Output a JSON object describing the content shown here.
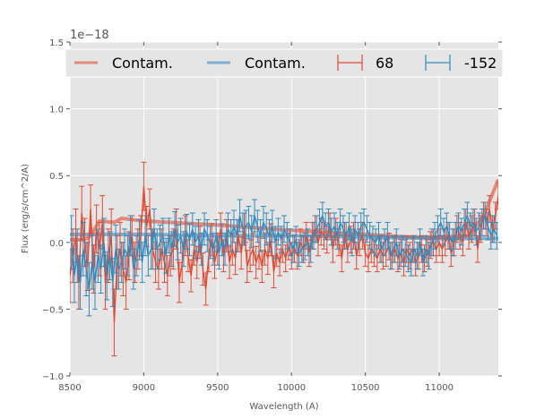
{
  "chart_data": {
    "type": "line",
    "title": "",
    "xlabel": "Wavelength (A)",
    "ylabel": "Flux (erg/s/cm^2/A)",
    "y_offset_label": "1e−18",
    "xlim": [
      8500,
      11400
    ],
    "ylim": [
      -1.0,
      1.5
    ],
    "x_ticks": [
      8500,
      9000,
      9500,
      10000,
      10500,
      11000
    ],
    "x_tick_labels": [
      "8500",
      "9000",
      "9500",
      "10000",
      "10500",
      "11000"
    ],
    "y_ticks": [
      -1.0,
      -0.5,
      0.0,
      0.5,
      1.0,
      1.5
    ],
    "y_tick_labels": [
      "−1.0",
      "−0.5",
      "0.0",
      "0.5",
      "1.0",
      "1.5"
    ],
    "grid": true,
    "legend_position": "top",
    "colors": {
      "red": "#e24a33",
      "blue": "#348abd",
      "background": "#e5e5e5",
      "grid": "#ffffff"
    },
    "legend": [
      {
        "label": "Contam.",
        "kind": "line",
        "color": "#e8887a"
      },
      {
        "label": "Contam.",
        "kind": "line",
        "color": "#7fb0d3"
      },
      {
        "label": "68",
        "kind": "errorbar",
        "color": "#e24a33"
      },
      {
        "label": "-152",
        "kind": "errorbar",
        "color": "#348abd"
      }
    ],
    "series": [
      {
        "name": "Contam. (68)",
        "kind": "contam",
        "color": "#e24a33",
        "x": [
          8500,
          8600,
          8640,
          8700,
          8800,
          8850,
          9000,
          9500,
          10000,
          10500,
          10800,
          11000,
          11200,
          11300,
          11400
        ],
        "y": [
          0.02,
          0.02,
          0.05,
          0.16,
          0.15,
          0.18,
          0.16,
          0.13,
          0.09,
          0.06,
          0.04,
          0.04,
          0.05,
          0.2,
          0.47
        ]
      },
      {
        "name": "Contam. (-152)",
        "kind": "contam",
        "color": "#348abd",
        "x": [
          8500,
          9000,
          9500,
          10000,
          10500,
          11000,
          11400
        ],
        "y": [
          0.06,
          0.06,
          0.05,
          0.05,
          0.04,
          0.03,
          0.03
        ]
      },
      {
        "name": "68",
        "kind": "errorbar",
        "color": "#e24a33",
        "x": [
          8500,
          8520,
          8540,
          8560,
          8580,
          8600,
          8620,
          8640,
          8660,
          8680,
          8700,
          8720,
          8740,
          8760,
          8780,
          8800,
          8820,
          8840,
          8860,
          8880,
          8900,
          8920,
          8940,
          8960,
          8980,
          9000,
          9020,
          9040,
          9060,
          9080,
          9100,
          9120,
          9140,
          9160,
          9180,
          9200,
          9220,
          9240,
          9260,
          9280,
          9300,
          9320,
          9340,
          9360,
          9380,
          9400,
          9420,
          9440,
          9460,
          9480,
          9500,
          9520,
          9540,
          9560,
          9580,
          9600,
          9620,
          9640,
          9660,
          9680,
          9700,
          9720,
          9740,
          9760,
          9780,
          9800,
          9820,
          9840,
          9860,
          9880,
          9900,
          9920,
          9940,
          9960,
          9980,
          10000,
          10020,
          10040,
          10060,
          10080,
          10100,
          10120,
          10140,
          10160,
          10180,
          10200,
          10220,
          10240,
          10260,
          10280,
          10300,
          10320,
          10340,
          10360,
          10380,
          10400,
          10420,
          10440,
          10460,
          10480,
          10500,
          10520,
          10540,
          10560,
          10580,
          10600,
          10620,
          10640,
          10660,
          10680,
          10700,
          10720,
          10740,
          10760,
          10780,
          10800,
          10820,
          10840,
          10860,
          10880,
          10900,
          10920,
          10940,
          10960,
          10980,
          11000,
          11020,
          11040,
          11060,
          11080,
          11100,
          11120,
          11140,
          11160,
          11180,
          11200,
          11220,
          11240,
          11260,
          11280,
          11300,
          11320,
          11340,
          11360,
          11380,
          11400
        ],
        "y": [
          -0.25,
          -0.1,
          0.05,
          -0.3,
          0.22,
          0.0,
          -0.18,
          0.25,
          -0.2,
          0.1,
          -0.05,
          0.15,
          -0.3,
          -0.1,
          0.05,
          -0.6,
          -0.15,
          -0.05,
          -0.2,
          -0.3,
          -0.1,
          0.05,
          -0.15,
          -0.05,
          0.05,
          0.42,
          0.12,
          0.25,
          -0.05,
          -0.15,
          -0.2,
          -0.05,
          -0.15,
          -0.25,
          -0.1,
          -0.05,
          0.1,
          -0.3,
          -0.15,
          0.05,
          -0.1,
          -0.25,
          -0.05,
          -0.15,
          0.0,
          -0.2,
          -0.35,
          -0.1,
          0.02,
          -0.15,
          -0.05,
          0.1,
          -0.1,
          0.05,
          -0.15,
          -0.05,
          -0.12,
          0.05,
          -0.08,
          0.1,
          -0.18,
          -0.1,
          -0.05,
          -0.15,
          -0.08,
          -0.18,
          -0.05,
          -0.12,
          0.02,
          -0.22,
          -0.08,
          -0.15,
          -0.05,
          -0.12,
          -0.03,
          -0.1,
          -0.05,
          -0.1,
          0.0,
          -0.05,
          0.05,
          -0.08,
          0.05,
          0.1,
          0.0,
          0.08,
          0.05,
          0.02,
          0.12,
          -0.05,
          0.08,
          0.0,
          -0.12,
          0.05,
          -0.05,
          0.02,
          0.05,
          -0.1,
          0.0,
          0.05,
          -0.08,
          -0.12,
          -0.05,
          -0.08,
          -0.12,
          -0.05,
          -0.1,
          -0.08,
          -0.03,
          -0.1,
          -0.05,
          -0.12,
          -0.08,
          -0.15,
          -0.05,
          -0.1,
          -0.05,
          -0.15,
          -0.1,
          -0.05,
          -0.12,
          -0.08,
          -0.02,
          0.0,
          -0.05,
          0.0,
          -0.05,
          0.0,
          0.05,
          -0.08,
          0.0,
          0.1,
          0.05,
          0.0,
          0.15,
          0.05,
          0.1,
          0.15,
          -0.05,
          0.1,
          0.2,
          0.15,
          0.25,
          0.1,
          0.2,
          0.35
        ],
        "yerr": [
          0.2,
          0.2,
          0.2,
          0.2,
          0.2,
          0.18,
          0.18,
          0.18,
          0.18,
          0.18,
          0.2,
          0.2,
          0.2,
          0.2,
          0.2,
          0.25,
          0.2,
          0.2,
          0.2,
          0.2,
          0.18,
          0.15,
          0.15,
          0.15,
          0.15,
          0.18,
          0.15,
          0.15,
          0.15,
          0.15,
          0.15,
          0.15,
          0.15,
          0.15,
          0.15,
          0.15,
          0.15,
          0.15,
          0.15,
          0.15,
          0.12,
          0.12,
          0.12,
          0.12,
          0.12,
          0.12,
          0.12,
          0.12,
          0.12,
          0.12,
          0.12,
          0.12,
          0.12,
          0.12,
          0.12,
          0.12,
          0.12,
          0.12,
          0.12,
          0.12,
          0.12,
          0.12,
          0.12,
          0.12,
          0.12,
          0.12,
          0.12,
          0.12,
          0.12,
          0.12,
          0.1,
          0.1,
          0.1,
          0.1,
          0.1,
          0.1,
          0.1,
          0.1,
          0.1,
          0.1,
          0.1,
          0.1,
          0.1,
          0.1,
          0.1,
          0.1,
          0.1,
          0.1,
          0.1,
          0.1,
          0.1,
          0.1,
          0.1,
          0.1,
          0.1,
          0.1,
          0.1,
          0.1,
          0.1,
          0.1,
          0.1,
          0.1,
          0.1,
          0.1,
          0.1,
          0.1,
          0.1,
          0.1,
          0.1,
          0.1,
          0.1,
          0.1,
          0.1,
          0.1,
          0.1,
          0.1,
          0.1,
          0.1,
          0.1,
          0.1,
          0.1,
          0.1,
          0.1,
          0.1,
          0.1,
          0.1,
          0.1,
          0.1,
          0.1,
          0.1,
          0.1,
          0.1,
          0.1,
          0.1,
          0.1,
          0.1,
          0.1,
          0.1,
          0.1,
          0.1,
          0.1,
          0.1,
          0.1,
          0.1,
          0.1,
          0.1
        ]
      },
      {
        "name": "-152",
        "kind": "errorbar",
        "color": "#348abd",
        "x": [
          8510,
          8530,
          8550,
          8570,
          8590,
          8610,
          8630,
          8650,
          8670,
          8690,
          8710,
          8730,
          8750,
          8770,
          8790,
          8810,
          8830,
          8850,
          8870,
          8890,
          8910,
          8930,
          8950,
          8970,
          8990,
          9010,
          9030,
          9050,
          9070,
          9090,
          9110,
          9130,
          9150,
          9170,
          9190,
          9210,
          9230,
          9250,
          9270,
          9290,
          9310,
          9330,
          9350,
          9370,
          9390,
          9410,
          9430,
          9450,
          9470,
          9490,
          9510,
          9530,
          9550,
          9570,
          9590,
          9610,
          9630,
          9650,
          9670,
          9690,
          9710,
          9730,
          9750,
          9770,
          9790,
          9810,
          9830,
          9850,
          9870,
          9890,
          9910,
          9930,
          9950,
          9970,
          9990,
          10010,
          10030,
          10050,
          10070,
          10090,
          10110,
          10130,
          10150,
          10170,
          10190,
          10210,
          10230,
          10250,
          10270,
          10290,
          10310,
          10330,
          10350,
          10370,
          10390,
          10410,
          10430,
          10450,
          10470,
          10490,
          10510,
          10530,
          10550,
          10570,
          10590,
          10610,
          10630,
          10650,
          10670,
          10690,
          10710,
          10730,
          10750,
          10770,
          10790,
          10810,
          10830,
          10850,
          10870,
          10890,
          10910,
          10930,
          10950,
          10970,
          10990,
          11010,
          11030,
          11050,
          11070,
          11090,
          11110,
          11130,
          11150,
          11170,
          11190,
          11210,
          11230,
          11250,
          11270,
          11290,
          11310,
          11330,
          11350,
          11370,
          11390
        ],
        "y": [
          0.0,
          -0.25,
          -0.1,
          -0.3,
          -0.05,
          -0.2,
          -0.35,
          -0.15,
          -0.3,
          -0.1,
          -0.2,
          0.0,
          -0.25,
          -0.1,
          -0.3,
          -0.05,
          -0.2,
          -0.15,
          -0.05,
          -0.1,
          0.05,
          -0.2,
          -0.1,
          0.02,
          -0.15,
          0.05,
          -0.1,
          -0.05,
          0.1,
          -0.05,
          0.0,
          0.05,
          -0.1,
          0.05,
          -0.05,
          0.1,
          0.0,
          0.05,
          -0.05,
          0.08,
          0.02,
          0.1,
          0.0,
          0.05,
          -0.05,
          0.1,
          0.05,
          0.0,
          -0.05,
          0.05,
          -0.08,
          0.02,
          -0.05,
          0.1,
          0.05,
          0.12,
          0.05,
          0.2,
          0.1,
          0.12,
          0.15,
          0.08,
          0.2,
          0.12,
          0.05,
          0.15,
          0.1,
          0.05,
          0.12,
          0.0,
          0.08,
          0.02,
          0.1,
          0.05,
          0.0,
          -0.05,
          0.02,
          -0.08,
          -0.05,
          -0.03,
          0.0,
          -0.05,
          0.05,
          0.1,
          0.15,
          0.2,
          0.12,
          0.15,
          0.08,
          0.12,
          0.05,
          0.15,
          0.1,
          0.05,
          0.12,
          0.0,
          0.1,
          0.05,
          0.12,
          0.15,
          0.1,
          0.05,
          0.02,
          0.0,
          0.05,
          -0.05,
          0.0,
          0.05,
          -0.1,
          -0.05,
          0.0,
          -0.1,
          -0.05,
          -0.08,
          -0.12,
          -0.15,
          -0.05,
          -0.1,
          0.0,
          -0.15,
          -0.05,
          -0.1,
          0.0,
          0.05,
          0.1,
          0.15,
          0.08,
          0.12,
          0.05,
          0.0,
          0.05,
          0.12,
          0.08,
          0.15,
          0.2,
          0.12,
          0.15,
          0.08,
          0.12,
          0.15,
          0.2,
          0.12,
          0.05,
          0.1,
          0.05
        ],
        "yerr": [
          0.2,
          0.2,
          0.2,
          0.2,
          0.2,
          0.2,
          0.2,
          0.2,
          0.2,
          0.2,
          0.18,
          0.18,
          0.18,
          0.18,
          0.18,
          0.18,
          0.15,
          0.15,
          0.15,
          0.15,
          0.15,
          0.15,
          0.15,
          0.15,
          0.15,
          0.15,
          0.15,
          0.15,
          0.15,
          0.15,
          0.13,
          0.13,
          0.13,
          0.13,
          0.13,
          0.13,
          0.13,
          0.13,
          0.13,
          0.13,
          0.12,
          0.12,
          0.12,
          0.12,
          0.12,
          0.12,
          0.12,
          0.12,
          0.12,
          0.12,
          0.12,
          0.12,
          0.12,
          0.12,
          0.12,
          0.12,
          0.12,
          0.12,
          0.12,
          0.12,
          0.12,
          0.12,
          0.12,
          0.12,
          0.12,
          0.12,
          0.12,
          0.12,
          0.12,
          0.12,
          0.1,
          0.1,
          0.1,
          0.1,
          0.1,
          0.1,
          0.1,
          0.1,
          0.1,
          0.1,
          0.1,
          0.1,
          0.1,
          0.1,
          0.1,
          0.1,
          0.1,
          0.1,
          0.1,
          0.1,
          0.1,
          0.1,
          0.1,
          0.1,
          0.1,
          0.1,
          0.1,
          0.1,
          0.1,
          0.1,
          0.1,
          0.1,
          0.1,
          0.1,
          0.1,
          0.1,
          0.1,
          0.1,
          0.1,
          0.1,
          0.1,
          0.1,
          0.1,
          0.1,
          0.1,
          0.1,
          0.1,
          0.1,
          0.1,
          0.1,
          0.1,
          0.1,
          0.1,
          0.1,
          0.1,
          0.1,
          0.1,
          0.1,
          0.1,
          0.1,
          0.1,
          0.1,
          0.1,
          0.1,
          0.1,
          0.1,
          0.1,
          0.1,
          0.1,
          0.1,
          0.1,
          0.1,
          0.1,
          0.1,
          0.1
        ]
      }
    ]
  }
}
